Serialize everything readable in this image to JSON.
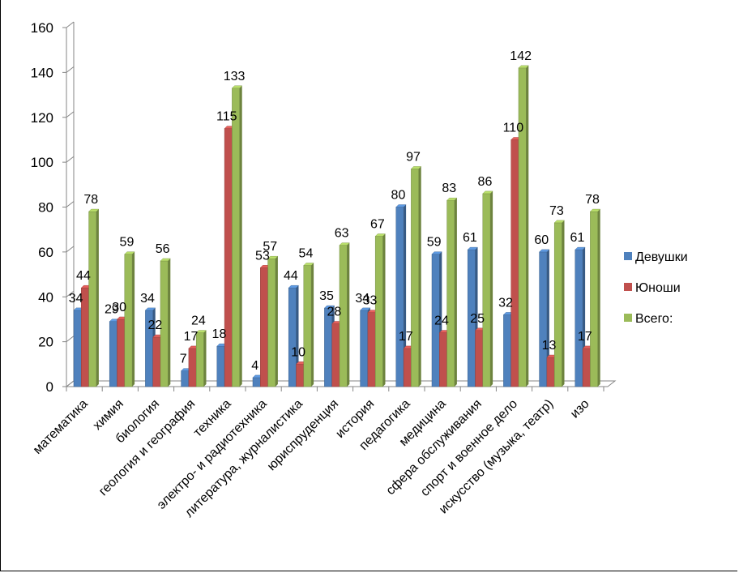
{
  "chart_data": {
    "type": "bar",
    "title": "",
    "xlabel": "",
    "ylabel": "",
    "ylim": [
      0,
      160
    ],
    "yticks": [
      0,
      20,
      40,
      60,
      80,
      100,
      120,
      140,
      160
    ],
    "grid": false,
    "legend_position": "right",
    "categories": [
      "математика",
      "химия",
      "биология",
      "геология   и  география",
      "техника",
      "электро- и радиотехника",
      "литература, журналистика",
      "юриспруденция",
      "история",
      "педагогика",
      "медицина",
      "сфера обслуживания",
      "спорт и военное дело",
      "искусство (музыка, театр)",
      "изо"
    ],
    "series": [
      {
        "name": "Девушки",
        "color": "#4F81BD",
        "values": [
          34,
          29,
          34,
          7,
          18,
          4,
          44,
          35,
          34,
          80,
          59,
          61,
          32,
          60,
          61
        ]
      },
      {
        "name": "Юноши",
        "color": "#C0504D",
        "values": [
          44,
          30,
          22,
          17,
          115,
          53,
          10,
          28,
          33,
          17,
          24,
          25,
          110,
          13,
          17
        ]
      },
      {
        "name": "Всего:",
        "color": "#9BBB59",
        "values": [
          78,
          59,
          56,
          24,
          133,
          57,
          54,
          63,
          67,
          97,
          83,
          86,
          142,
          73,
          78
        ]
      }
    ],
    "data_labels": [
      [
        "34",
        "29",
        "34",
        "7",
        "18",
        "4",
        "44",
        "35",
        "34",
        "80",
        "59",
        "61",
        "32",
        "60",
        "61"
      ],
      [
        "44",
        "",
        "22",
        "17",
        "115",
        "53",
        "10",
        "28",
        "33",
        "17",
        "24",
        "25",
        "110",
        "13",
        "17"
      ],
      [
        "78",
        "59",
        "56",
        "24",
        "133",
        "57",
        "54",
        "63",
        "67",
        "97",
        "83",
        "86",
        "142",
        "73",
        "78"
      ]
    ],
    "label_30": "30"
  }
}
